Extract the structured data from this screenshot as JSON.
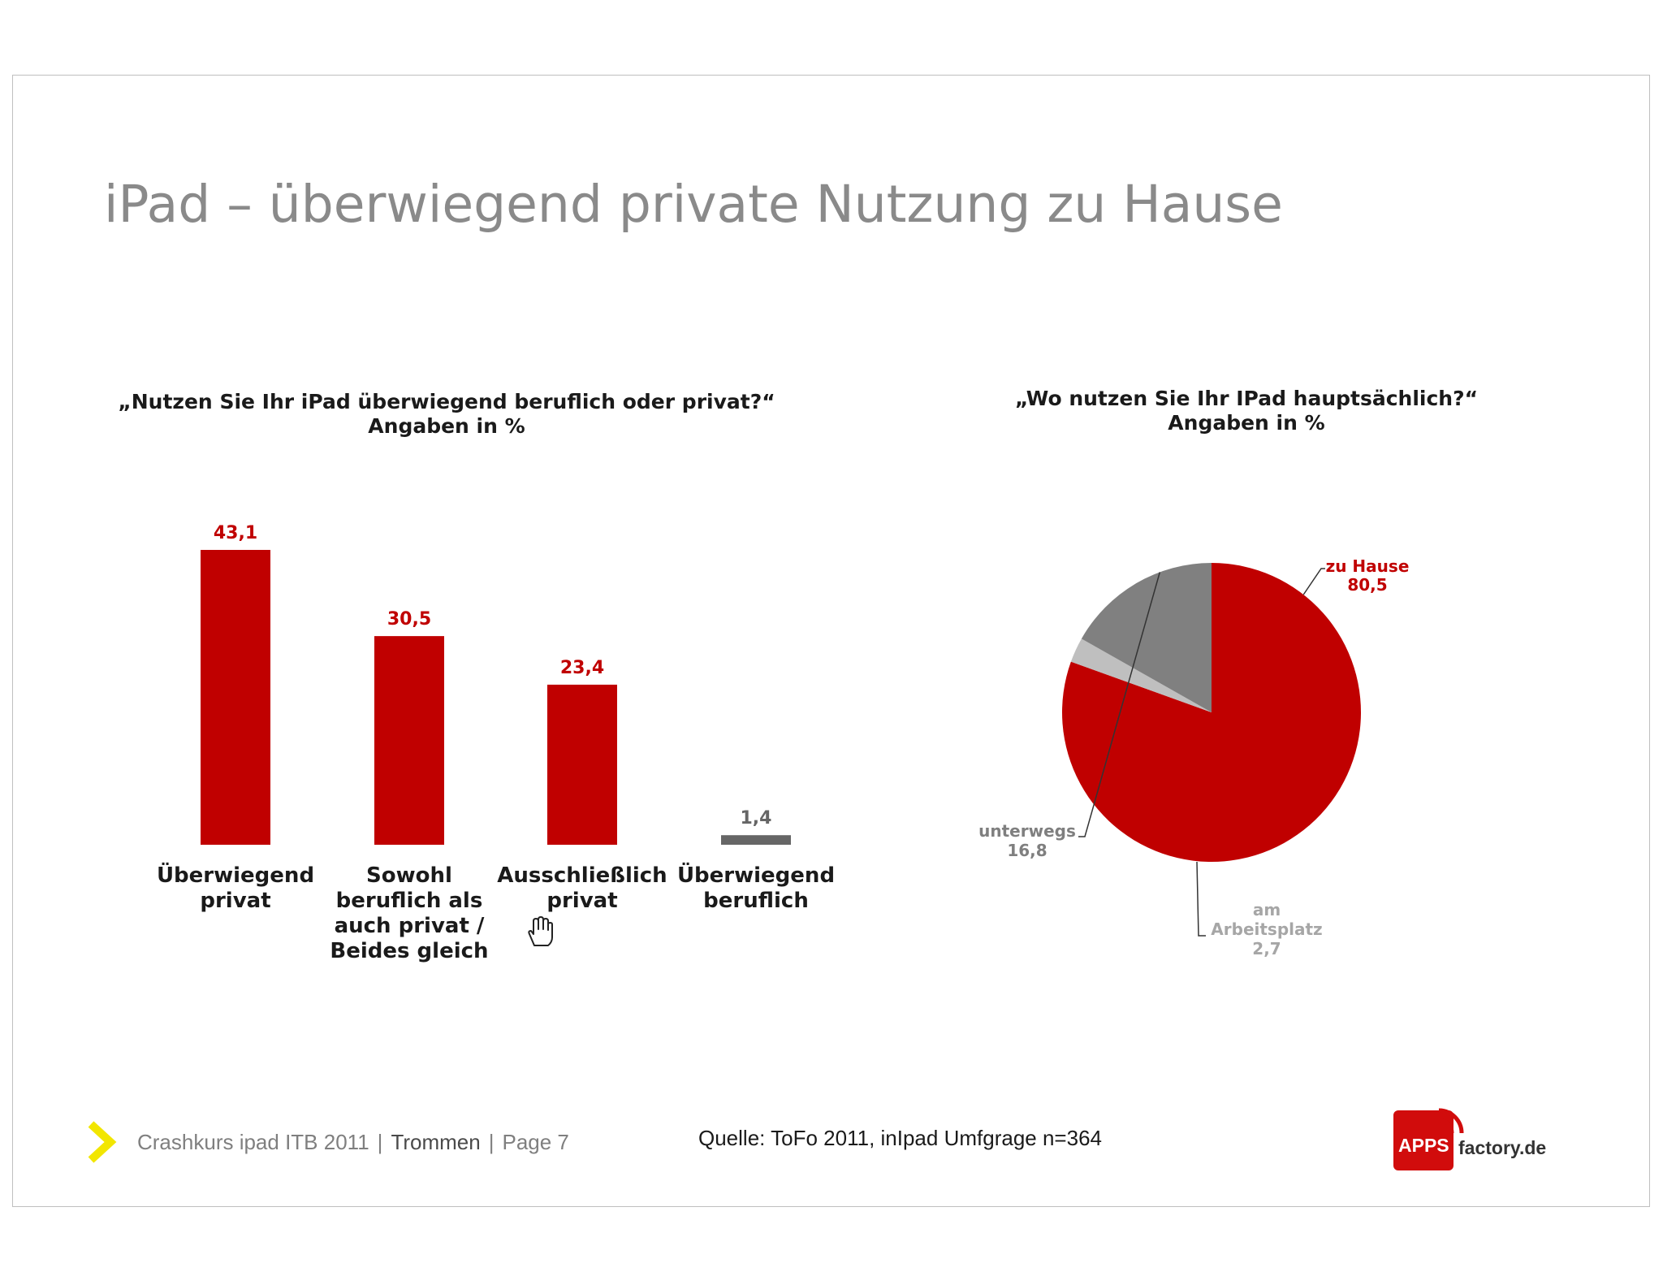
{
  "slide": {
    "title": "iPad – überwiegend private Nutzung zu Hause"
  },
  "chart_data": [
    {
      "type": "bar",
      "title_line1": "„Nutzen Sie Ihr iPad überwiegend beruflich oder privat?“",
      "title_line2": "Angaben in %",
      "categories": [
        [
          "Überwiegend",
          "privat"
        ],
        [
          "Sowohl",
          "beruflich als",
          "auch privat /",
          "Beides gleich"
        ],
        [
          "Ausschließlich",
          "privat"
        ],
        [
          "Überwiegend",
          "beruflich"
        ]
      ],
      "values": [
        43.1,
        30.5,
        23.4,
        1.4
      ],
      "value_labels": [
        "43,1",
        "30,5",
        "23,4",
        "1,4"
      ],
      "colors": [
        "#c00000",
        "#c00000",
        "#c00000",
        "#666666"
      ],
      "ylim": [
        0,
        43.1
      ]
    },
    {
      "type": "pie",
      "title_line1": "„Wo nutzen Sie Ihr IPad hauptsächlich?“",
      "title_line2": "Angaben in %",
      "slices": [
        {
          "label": "zu Hause",
          "value": 80.5,
          "value_label": "80,5",
          "color": "#c00000",
          "label_color": "#c00000"
        },
        {
          "label_lines": [
            "am",
            "Arbeitsplatz"
          ],
          "value": 2.7,
          "value_label": "2,7",
          "color": "#bfbfbf",
          "label_color": "#a6a6a6"
        },
        {
          "label": "unterwegs",
          "value": 16.8,
          "value_label": "16,8",
          "color": "#808080",
          "label_color": "#7f7f7f"
        }
      ]
    }
  ],
  "footer": {
    "course": "Crashkurs ipad ITB  2011",
    "separator": "|",
    "author": "Trommen",
    "page": "Page 7",
    "source": "Quelle: ToFo 2011, inIpad Umfgrage n=364"
  },
  "logo": {
    "apps": "APPS",
    "factory": "factory.de",
    "color": "#d10c0c"
  },
  "icons": {
    "footer": "chevron-right-icon",
    "cursor": "hand-cursor-icon"
  }
}
